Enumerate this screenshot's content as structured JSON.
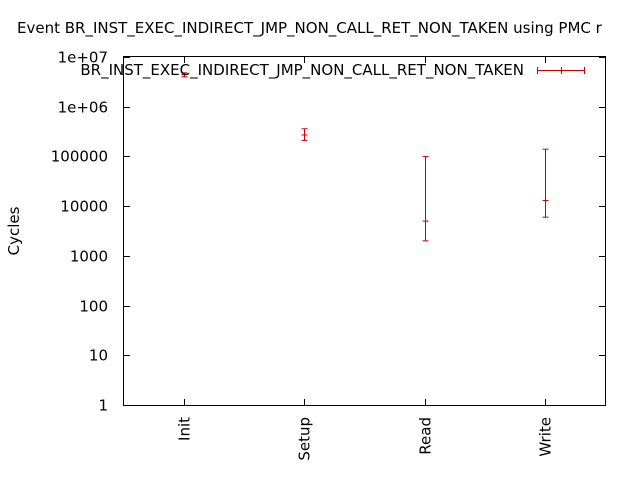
{
  "chart_data": {
    "type": "errorbar",
    "title": "Event BR_INST_EXEC_INDIRECT_JMP_NON_CALL_RET_NON_TAKEN using PMC r",
    "xlabel": "",
    "ylabel": "Cycles",
    "yscale": "log",
    "ylim": [
      1,
      10000000
    ],
    "yticks": [
      {
        "value": 1,
        "label": "1"
      },
      {
        "value": 10,
        "label": "10"
      },
      {
        "value": 100,
        "label": "100"
      },
      {
        "value": 1000,
        "label": "1000"
      },
      {
        "value": 10000,
        "label": "10000"
      },
      {
        "value": 100000,
        "label": "100000"
      },
      {
        "value": 1000000,
        "label": "1e+06"
      },
      {
        "value": 10000000,
        "label": "1e+07"
      }
    ],
    "categories": [
      "Init",
      "Setup",
      "Read",
      "Write"
    ],
    "legend_position": "top-right",
    "series": [
      {
        "name": "BR_INST_EXEC_INDIRECT_JMP_NON_CALL_RET_NON_TAKEN",
        "color": "#cc0000",
        "points": [
          {
            "x": "Init",
            "y": 4400000,
            "low": 4000000,
            "high": 4800000
          },
          {
            "x": "Setup",
            "y": 270000,
            "low": 210000,
            "high": 360000
          },
          {
            "x": "Read",
            "y": 5000,
            "low": 2000,
            "high": 100000
          },
          {
            "x": "Write",
            "y": 13000,
            "low": 6000,
            "high": 140000
          }
        ]
      }
    ]
  }
}
